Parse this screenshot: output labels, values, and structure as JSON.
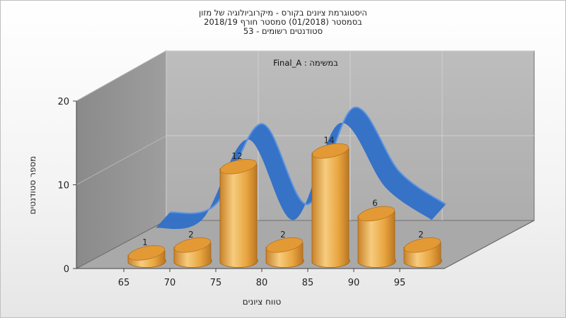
{
  "chart_data": {
    "type": "bar",
    "title_lines": [
      "היסטוגרמת ציונים בקורס - מיקרוביולוגיה של מזון",
      "בסמסטר  (01/2018)  סמסטר חורף 2018/19",
      "סטודנטים רשומים - 53"
    ],
    "legend": "Final_A : במשימה",
    "categories": [
      "65",
      "70",
      "75",
      "80",
      "85",
      "90",
      "95"
    ],
    "values": [
      1,
      2,
      12,
      2,
      14,
      6,
      2
    ],
    "xlabel": "טווח ציונים",
    "ylabel": "מספר סטודנטים",
    "ylim": [
      0,
      20
    ],
    "yticks": [
      0,
      10,
      20
    ],
    "bar_color": "#e8a540",
    "curve_color": "#2f6fc7",
    "grid": true
  }
}
